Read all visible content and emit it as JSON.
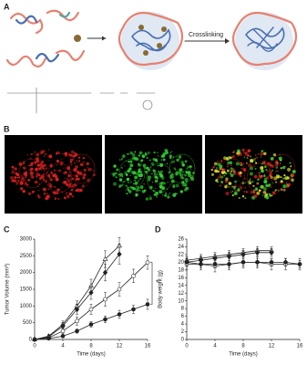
{
  "panels": {
    "a": "A",
    "b": "B",
    "c": "C",
    "d": "D"
  },
  "schematic": {
    "arrow_label": "Crosslinking"
  },
  "chart_data": [
    {
      "type": "line",
      "ylabel": "Tumor Volume (mm³)",
      "xlabel": "Time (days)",
      "x": [
        0,
        2,
        4,
        6,
        8,
        10,
        12,
        14,
        16
      ],
      "xlim": [
        0,
        16
      ],
      "xticks": [
        0,
        4,
        8,
        12,
        16
      ],
      "ylim": [
        0,
        3000
      ],
      "yticks": [
        0,
        500,
        1000,
        1500,
        2000,
        2500,
        3000
      ],
      "annotation": "*",
      "series": [
        {
          "marker": "triangle",
          "filled": false,
          "color": "#222",
          "values": [
            0,
            100,
            450,
            1000,
            1600,
            2400,
            2800,
            null,
            null
          ],
          "errors": [
            0,
            40,
            100,
            150,
            200,
            250,
            250,
            null,
            null
          ]
        },
        {
          "marker": "diamond",
          "filled": true,
          "color": "#222",
          "values": [
            0,
            80,
            400,
            900,
            1400,
            2000,
            2550,
            null,
            null
          ],
          "errors": [
            0,
            40,
            100,
            150,
            200,
            250,
            300,
            null,
            null
          ]
        },
        {
          "marker": "circle",
          "filled": false,
          "color": "#222",
          "values": [
            0,
            50,
            250,
            550,
            900,
            1200,
            1500,
            1900,
            2300
          ],
          "errors": [
            0,
            30,
            80,
            120,
            150,
            200,
            200,
            200,
            200
          ]
        },
        {
          "marker": "circle",
          "filled": true,
          "color": "#222",
          "values": [
            0,
            30,
            100,
            250,
            450,
            600,
            750,
            900,
            1050
          ],
          "errors": [
            0,
            20,
            40,
            60,
            80,
            100,
            120,
            120,
            150
          ]
        }
      ]
    },
    {
      "type": "line",
      "ylabel": "Body weight (g)",
      "xlabel": "Time (days)",
      "x": [
        0,
        2,
        4,
        6,
        8,
        10,
        12,
        14,
        16
      ],
      "xlim": [
        0,
        16
      ],
      "xticks": [
        0,
        4,
        8,
        12,
        16
      ],
      "ylim": [
        0,
        26
      ],
      "yticks": [
        0,
        2,
        4,
        6,
        8,
        10,
        12,
        14,
        16,
        18,
        20,
        22,
        24,
        26
      ],
      "series": [
        {
          "marker": "triangle",
          "filled": false,
          "color": "#222",
          "values": [
            20.5,
            21,
            21.5,
            22,
            22.5,
            23,
            23,
            null,
            null
          ],
          "errors": [
            1,
            1,
            1,
            1,
            1,
            1,
            1,
            null,
            null
          ]
        },
        {
          "marker": "diamond",
          "filled": true,
          "color": "#222",
          "values": [
            20,
            20.5,
            21,
            21.5,
            22,
            22.5,
            22.5,
            null,
            null
          ],
          "errors": [
            1,
            1,
            1,
            1,
            1,
            1,
            1,
            null,
            null
          ]
        },
        {
          "marker": "circle",
          "filled": false,
          "color": "#222",
          "values": [
            19.5,
            19.5,
            19,
            19.5,
            20,
            20,
            19.5,
            19.5,
            19.5
          ],
          "errors": [
            1.5,
            1.5,
            1.5,
            1.5,
            1.5,
            1.5,
            1.5,
            1.5,
            1.5
          ]
        },
        {
          "marker": "circle",
          "filled": true,
          "color": "#222",
          "values": [
            20,
            19.5,
            19.5,
            19.5,
            20,
            20,
            20,
            20,
            19.5
          ],
          "errors": [
            1,
            1,
            1,
            1,
            1,
            1,
            1,
            1,
            1
          ]
        }
      ]
    }
  ]
}
